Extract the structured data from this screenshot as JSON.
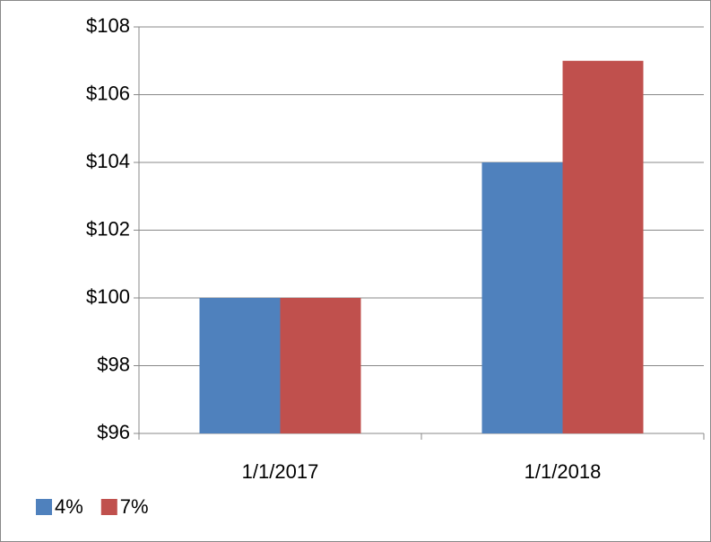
{
  "chart_data": {
    "type": "bar",
    "categories": [
      "1/1/2017",
      "1/1/2018"
    ],
    "series": [
      {
        "name": "4%",
        "color": "#4f81bd",
        "values": [
          100,
          104
        ]
      },
      {
        "name": "7%",
        "color": "#c0504d",
        "values": [
          100,
          107
        ]
      }
    ],
    "ylim": [
      96,
      108
    ],
    "yticks": [
      {
        "value": 96,
        "label": "$96"
      },
      {
        "value": 98,
        "label": "$98"
      },
      {
        "value": 100,
        "label": "$100"
      },
      {
        "value": 102,
        "label": "$102"
      },
      {
        "value": 104,
        "label": "$104"
      },
      {
        "value": 106,
        "label": "$106"
      },
      {
        "value": 108,
        "label": "$108"
      }
    ],
    "grid": true,
    "legend": "bottom-left"
  }
}
